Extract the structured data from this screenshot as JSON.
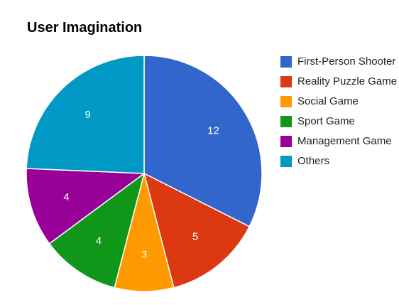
{
  "chart_data": {
    "type": "pie",
    "title": "User Imagination",
    "legend_position": "right",
    "slices": [
      {
        "label": "First-Person Shooter",
        "value": 12,
        "color": "#3366cc"
      },
      {
        "label": "Reality Puzzle Game",
        "value": 5,
        "color": "#dc3912"
      },
      {
        "label": "Social Game",
        "value": 3,
        "color": "#ff9900"
      },
      {
        "label": "Sport Game",
        "value": 4,
        "color": "#109618"
      },
      {
        "label": "Management Game",
        "value": 4,
        "color": "#990099"
      },
      {
        "label": "Others",
        "value": 9,
        "color": "#0099c6"
      }
    ]
  }
}
